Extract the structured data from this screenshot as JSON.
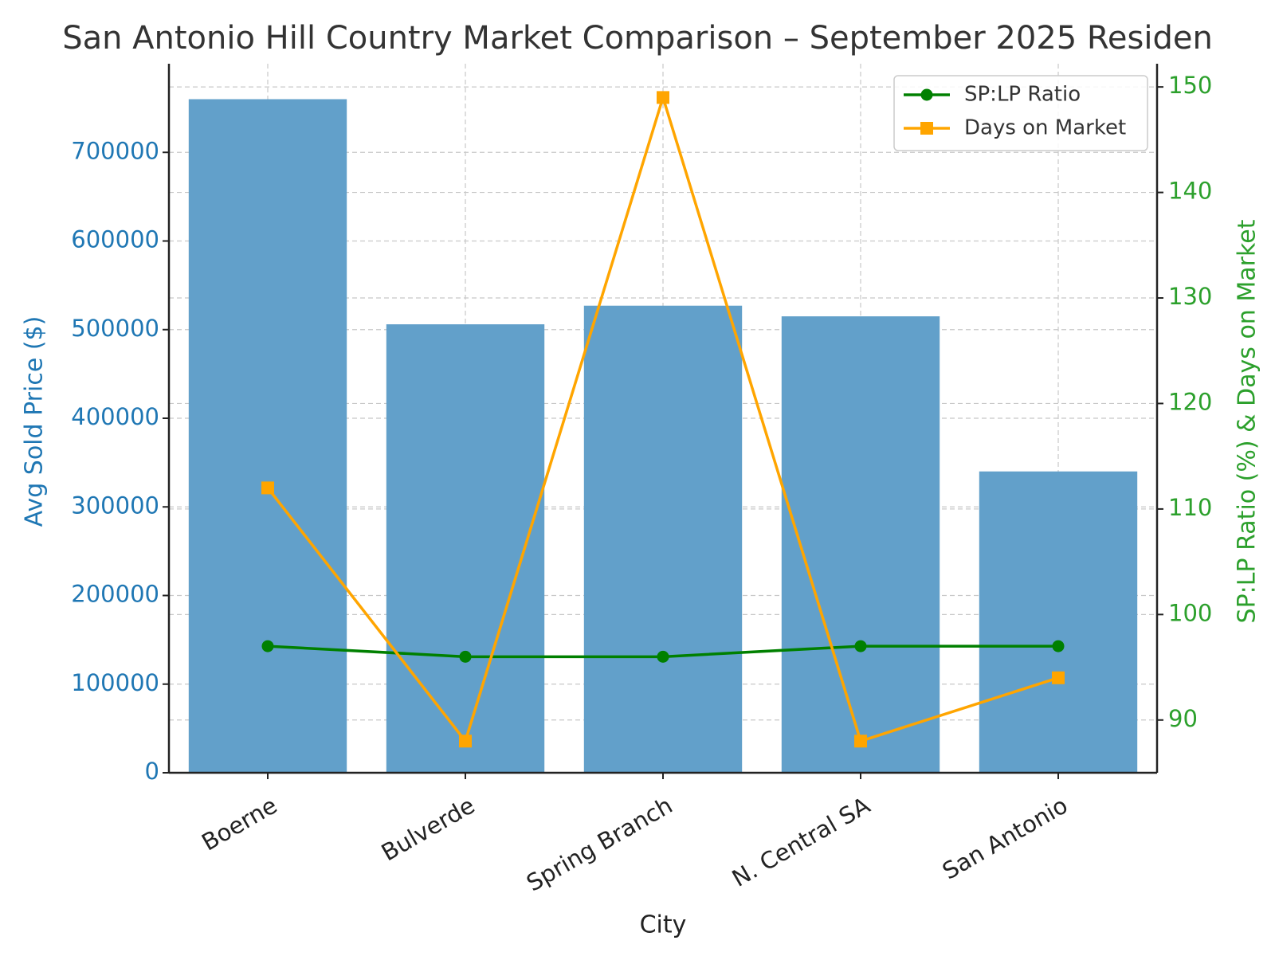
{
  "chart_data": {
    "type": "bar",
    "title": "San Antonio Hill Country Market Comparison – September 2025 Residen",
    "xlabel": "City",
    "ylabel": "Avg Sold Price ($)",
    "y2label": "SP:LP Ratio (%) & Days on Market",
    "categories": [
      "Boerne",
      "Bulverde",
      "Spring Branch",
      "N. Central SA",
      "San Antonio"
    ],
    "values": [
      760000,
      506000,
      527000,
      515000,
      340000
    ],
    "color": "#62a0ca",
    "series": [
      {
        "name": "SP:LP Ratio",
        "color": "#008000",
        "marker": "circle",
        "axis": "y2",
        "values": [
          97,
          96,
          96,
          97,
          97
        ]
      },
      {
        "name": "Days on Market",
        "color": "#ffa500",
        "marker": "square",
        "axis": "y2",
        "values": [
          112,
          88,
          149,
          88,
          94
        ]
      }
    ],
    "ylim": [
      0,
      800000
    ],
    "yticks": [
      0,
      100000,
      200000,
      300000,
      400000,
      500000,
      600000,
      700000
    ],
    "y2lim": [
      85,
      152.2
    ],
    "y2ticks": [
      90,
      100,
      110,
      120,
      130,
      140,
      150
    ],
    "grid": true,
    "legend": "upper right"
  }
}
